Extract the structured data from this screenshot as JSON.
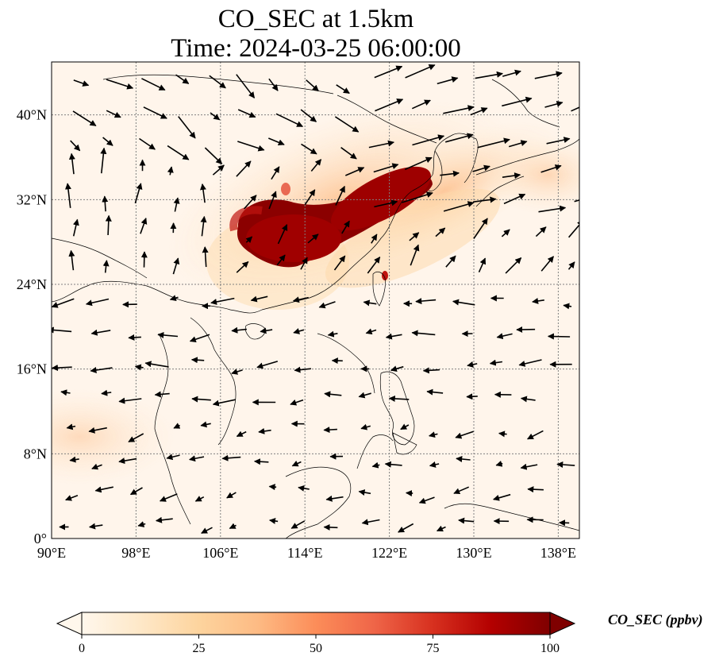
{
  "title_line1": "CO_SEC at 1.5km",
  "title_line2": "Time: 2024-03-25 06:00:00",
  "map": {
    "lon_range": [
      90,
      140
    ],
    "lat_range": [
      0,
      45
    ],
    "x_ticks": [
      "90°E",
      "98°E",
      "106°E",
      "114°E",
      "122°E",
      "130°E",
      "138°E"
    ],
    "x_tick_values": [
      90,
      98,
      106,
      114,
      122,
      130,
      138
    ],
    "y_ticks": [
      "0°",
      "8°N",
      "16°N",
      "24°N",
      "32°N",
      "40°N"
    ],
    "y_tick_values": [
      0,
      8,
      16,
      24,
      32,
      40
    ],
    "gridlines": true,
    "background_color": "#fff5eb",
    "coastline_color": "#000000"
  },
  "colorbar": {
    "label": "CO_SEC (ppbv)",
    "ticks": [
      "0",
      "25",
      "50",
      "75",
      "100"
    ],
    "tick_values": [
      0,
      25,
      50,
      75,
      100
    ],
    "range": [
      0,
      100
    ],
    "colormap": "OrRd",
    "colors": [
      "#fff7ec",
      "#fee8c8",
      "#fdd49e",
      "#fdbb84",
      "#fc8d59",
      "#ef6548",
      "#d7301f",
      "#b30000",
      "#7f0000"
    ],
    "extend": "both"
  }
}
